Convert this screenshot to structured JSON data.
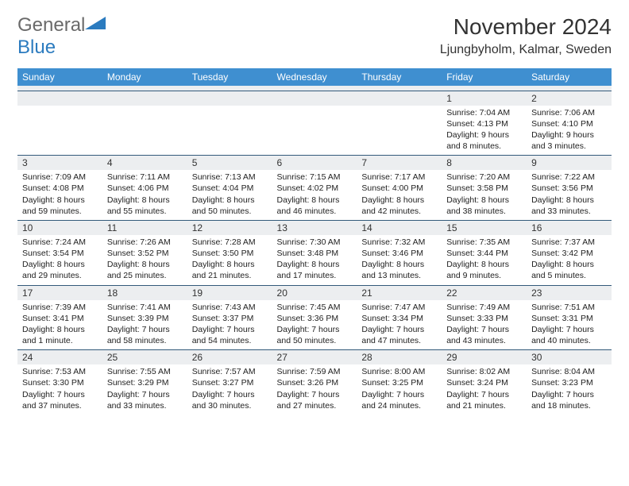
{
  "brand": {
    "part1": "General",
    "part2": "Blue"
  },
  "title": "November 2024",
  "location": "Ljungbyholm, Kalmar, Sweden",
  "colors": {
    "header_bg": "#3f8fd0",
    "header_text": "#ffffff",
    "daynum_bg": "#eceef0",
    "border": "#335a7a",
    "text": "#222222",
    "logo_gray": "#6a6a6a",
    "logo_blue": "#2b7bbf"
  },
  "columns": [
    "Sunday",
    "Monday",
    "Tuesday",
    "Wednesday",
    "Thursday",
    "Friday",
    "Saturday"
  ],
  "weeks": [
    {
      "nums": [
        "",
        "",
        "",
        "",
        "",
        "1",
        "2"
      ],
      "cells": [
        null,
        null,
        null,
        null,
        null,
        {
          "sr": "Sunrise: 7:04 AM",
          "ss": "Sunset: 4:13 PM",
          "dl": "Daylight: 9 hours and 8 minutes."
        },
        {
          "sr": "Sunrise: 7:06 AM",
          "ss": "Sunset: 4:10 PM",
          "dl": "Daylight: 9 hours and 3 minutes."
        }
      ]
    },
    {
      "nums": [
        "3",
        "4",
        "5",
        "6",
        "7",
        "8",
        "9"
      ],
      "cells": [
        {
          "sr": "Sunrise: 7:09 AM",
          "ss": "Sunset: 4:08 PM",
          "dl": "Daylight: 8 hours and 59 minutes."
        },
        {
          "sr": "Sunrise: 7:11 AM",
          "ss": "Sunset: 4:06 PM",
          "dl": "Daylight: 8 hours and 55 minutes."
        },
        {
          "sr": "Sunrise: 7:13 AM",
          "ss": "Sunset: 4:04 PM",
          "dl": "Daylight: 8 hours and 50 minutes."
        },
        {
          "sr": "Sunrise: 7:15 AM",
          "ss": "Sunset: 4:02 PM",
          "dl": "Daylight: 8 hours and 46 minutes."
        },
        {
          "sr": "Sunrise: 7:17 AM",
          "ss": "Sunset: 4:00 PM",
          "dl": "Daylight: 8 hours and 42 minutes."
        },
        {
          "sr": "Sunrise: 7:20 AM",
          "ss": "Sunset: 3:58 PM",
          "dl": "Daylight: 8 hours and 38 minutes."
        },
        {
          "sr": "Sunrise: 7:22 AM",
          "ss": "Sunset: 3:56 PM",
          "dl": "Daylight: 8 hours and 33 minutes."
        }
      ]
    },
    {
      "nums": [
        "10",
        "11",
        "12",
        "13",
        "14",
        "15",
        "16"
      ],
      "cells": [
        {
          "sr": "Sunrise: 7:24 AM",
          "ss": "Sunset: 3:54 PM",
          "dl": "Daylight: 8 hours and 29 minutes."
        },
        {
          "sr": "Sunrise: 7:26 AM",
          "ss": "Sunset: 3:52 PM",
          "dl": "Daylight: 8 hours and 25 minutes."
        },
        {
          "sr": "Sunrise: 7:28 AM",
          "ss": "Sunset: 3:50 PM",
          "dl": "Daylight: 8 hours and 21 minutes."
        },
        {
          "sr": "Sunrise: 7:30 AM",
          "ss": "Sunset: 3:48 PM",
          "dl": "Daylight: 8 hours and 17 minutes."
        },
        {
          "sr": "Sunrise: 7:32 AM",
          "ss": "Sunset: 3:46 PM",
          "dl": "Daylight: 8 hours and 13 minutes."
        },
        {
          "sr": "Sunrise: 7:35 AM",
          "ss": "Sunset: 3:44 PM",
          "dl": "Daylight: 8 hours and 9 minutes."
        },
        {
          "sr": "Sunrise: 7:37 AM",
          "ss": "Sunset: 3:42 PM",
          "dl": "Daylight: 8 hours and 5 minutes."
        }
      ]
    },
    {
      "nums": [
        "17",
        "18",
        "19",
        "20",
        "21",
        "22",
        "23"
      ],
      "cells": [
        {
          "sr": "Sunrise: 7:39 AM",
          "ss": "Sunset: 3:41 PM",
          "dl": "Daylight: 8 hours and 1 minute."
        },
        {
          "sr": "Sunrise: 7:41 AM",
          "ss": "Sunset: 3:39 PM",
          "dl": "Daylight: 7 hours and 58 minutes."
        },
        {
          "sr": "Sunrise: 7:43 AM",
          "ss": "Sunset: 3:37 PM",
          "dl": "Daylight: 7 hours and 54 minutes."
        },
        {
          "sr": "Sunrise: 7:45 AM",
          "ss": "Sunset: 3:36 PM",
          "dl": "Daylight: 7 hours and 50 minutes."
        },
        {
          "sr": "Sunrise: 7:47 AM",
          "ss": "Sunset: 3:34 PM",
          "dl": "Daylight: 7 hours and 47 minutes."
        },
        {
          "sr": "Sunrise: 7:49 AM",
          "ss": "Sunset: 3:33 PM",
          "dl": "Daylight: 7 hours and 43 minutes."
        },
        {
          "sr": "Sunrise: 7:51 AM",
          "ss": "Sunset: 3:31 PM",
          "dl": "Daylight: 7 hours and 40 minutes."
        }
      ]
    },
    {
      "nums": [
        "24",
        "25",
        "26",
        "27",
        "28",
        "29",
        "30"
      ],
      "cells": [
        {
          "sr": "Sunrise: 7:53 AM",
          "ss": "Sunset: 3:30 PM",
          "dl": "Daylight: 7 hours and 37 minutes."
        },
        {
          "sr": "Sunrise: 7:55 AM",
          "ss": "Sunset: 3:29 PM",
          "dl": "Daylight: 7 hours and 33 minutes."
        },
        {
          "sr": "Sunrise: 7:57 AM",
          "ss": "Sunset: 3:27 PM",
          "dl": "Daylight: 7 hours and 30 minutes."
        },
        {
          "sr": "Sunrise: 7:59 AM",
          "ss": "Sunset: 3:26 PM",
          "dl": "Daylight: 7 hours and 27 minutes."
        },
        {
          "sr": "Sunrise: 8:00 AM",
          "ss": "Sunset: 3:25 PM",
          "dl": "Daylight: 7 hours and 24 minutes."
        },
        {
          "sr": "Sunrise: 8:02 AM",
          "ss": "Sunset: 3:24 PM",
          "dl": "Daylight: 7 hours and 21 minutes."
        },
        {
          "sr": "Sunrise: 8:04 AM",
          "ss": "Sunset: 3:23 PM",
          "dl": "Daylight: 7 hours and 18 minutes."
        }
      ]
    }
  ]
}
